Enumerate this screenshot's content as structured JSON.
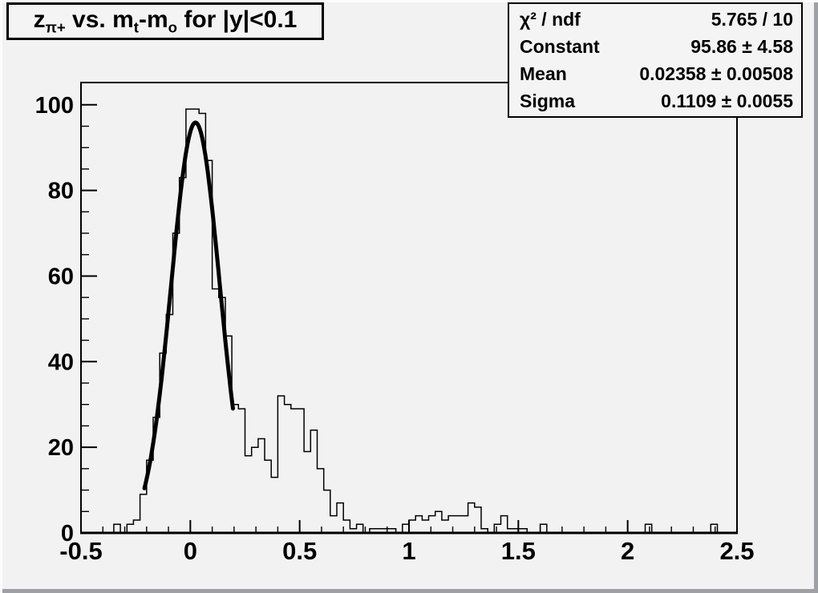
{
  "window": {
    "background": "#f2f2f2",
    "bevel_light": "#fbfbfb",
    "bevel_dark": "#9da0a4",
    "pave_background": "#f4f4f4",
    "line_color": "#000000"
  },
  "title_box": {
    "text_plain": "z_{pi+} vs. m_{t}-m_{o} for |y|<0.1",
    "segments": [
      {
        "text": "z"
      },
      {
        "text": "π+",
        "sub": true
      },
      {
        "text": " vs. m"
      },
      {
        "text": "t",
        "sub": true
      },
      {
        "text": "-m"
      },
      {
        "text": "o",
        "sub": true
      },
      {
        "text": " for |y|<0.1"
      }
    ]
  },
  "stats_box": {
    "rows": [
      {
        "label": "χ² / ndf",
        "value": "5.765 / 10"
      },
      {
        "label": "Constant",
        "value": "95.86 ± 4.58"
      },
      {
        "label": "Mean",
        "value": "0.02358 ± 0.00508"
      },
      {
        "label": "Sigma",
        "value": "0.1109 ± 0.0055"
      }
    ]
  },
  "chart_data": {
    "type": "bar",
    "subtype": "step-histogram",
    "title": "z_{pi+} vs. m_t-m_o for |y|<0.1",
    "xlabel": "",
    "ylabel": "",
    "xlim": [
      -0.5,
      2.5
    ],
    "ylim": [
      0,
      105.2
    ],
    "grid": false,
    "bin_start": -0.5,
    "bin_width": 0.03,
    "values": [
      0,
      0,
      0,
      0,
      0,
      2,
      0,
      2,
      3,
      9,
      17,
      27,
      42,
      51,
      70,
      83,
      99,
      99,
      98,
      87,
      57,
      55,
      46,
      30,
      29,
      18,
      20,
      22,
      17,
      13,
      32,
      30,
      29,
      29,
      19,
      24,
      15,
      10,
      4,
      7,
      3,
      1,
      2,
      0,
      1,
      1,
      1,
      1,
      0,
      2,
      3,
      4,
      3,
      4,
      5,
      3,
      4,
      4,
      4,
      7,
      6,
      1,
      0,
      2,
      4,
      1,
      1,
      1,
      0,
      0,
      2,
      0,
      0,
      0,
      0,
      0,
      0,
      0,
      0,
      0,
      0,
      0,
      0,
      0,
      0,
      0,
      2,
      0,
      0,
      0,
      0,
      0,
      0,
      0,
      0,
      0,
      2,
      0,
      0,
      0
    ],
    "x_ticks": {
      "major": [
        -0.5,
        0,
        0.5,
        1,
        1.5,
        2,
        2.5
      ],
      "labels": [
        "-0.5",
        "0",
        "0.5",
        "1",
        "1.5",
        "2",
        "2.5"
      ],
      "minor_step": 0.1
    },
    "y_ticks": {
      "major": [
        0,
        20,
        40,
        60,
        80,
        100
      ],
      "labels": [
        "0",
        "20",
        "40",
        "60",
        "80",
        "100"
      ],
      "minor_step": 5
    },
    "fit": {
      "shape": "gaussian",
      "constant": 95.86,
      "mean": 0.02358,
      "sigma": 0.1109,
      "chi2": 5.765,
      "ndf": 10,
      "draw_range": [
        -0.21,
        0.195
      ]
    }
  }
}
